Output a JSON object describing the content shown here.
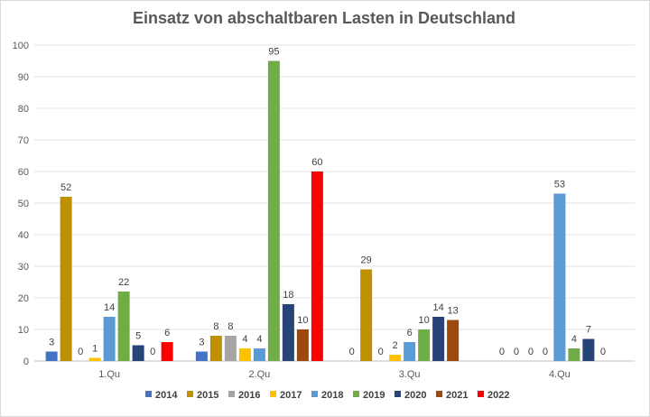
{
  "chart_data": {
    "type": "bar",
    "title": "Einsatz von abschaltbaren Lasten in Deutschland",
    "xlabel": "",
    "ylabel": "",
    "ylim": [
      0,
      100
    ],
    "yticks": [
      0,
      10,
      20,
      30,
      40,
      50,
      60,
      70,
      80,
      90,
      100
    ],
    "grid": true,
    "legend": "bottom",
    "categories": [
      "1.Qu",
      "2.Qu",
      "3.Qu",
      "4.Qu"
    ],
    "series": [
      {
        "name": "2014",
        "color": "#4472c4",
        "values": [
          3,
          3,
          0,
          0
        ]
      },
      {
        "name": "2015",
        "color": "#bf9000",
        "values": [
          52,
          8,
          29,
          0
        ]
      },
      {
        "name": "2016",
        "color": "#a5a5a5",
        "values": [
          0,
          8,
          0,
          0
        ]
      },
      {
        "name": "2017",
        "color": "#ffc000",
        "values": [
          1,
          4,
          2,
          0
        ]
      },
      {
        "name": "2018",
        "color": "#5b9bd5",
        "values": [
          14,
          4,
          6,
          53
        ]
      },
      {
        "name": "2019",
        "color": "#70ad47",
        "values": [
          22,
          95,
          10,
          4
        ]
      },
      {
        "name": "2020",
        "color": "#264478",
        "values": [
          5,
          18,
          14,
          7
        ]
      },
      {
        "name": "2021",
        "color": "#9e480e",
        "values": [
          0,
          10,
          13,
          0
        ]
      },
      {
        "name": "2022",
        "color": "#ff0000",
        "values": [
          6,
          60,
          null,
          null
        ]
      }
    ]
  }
}
